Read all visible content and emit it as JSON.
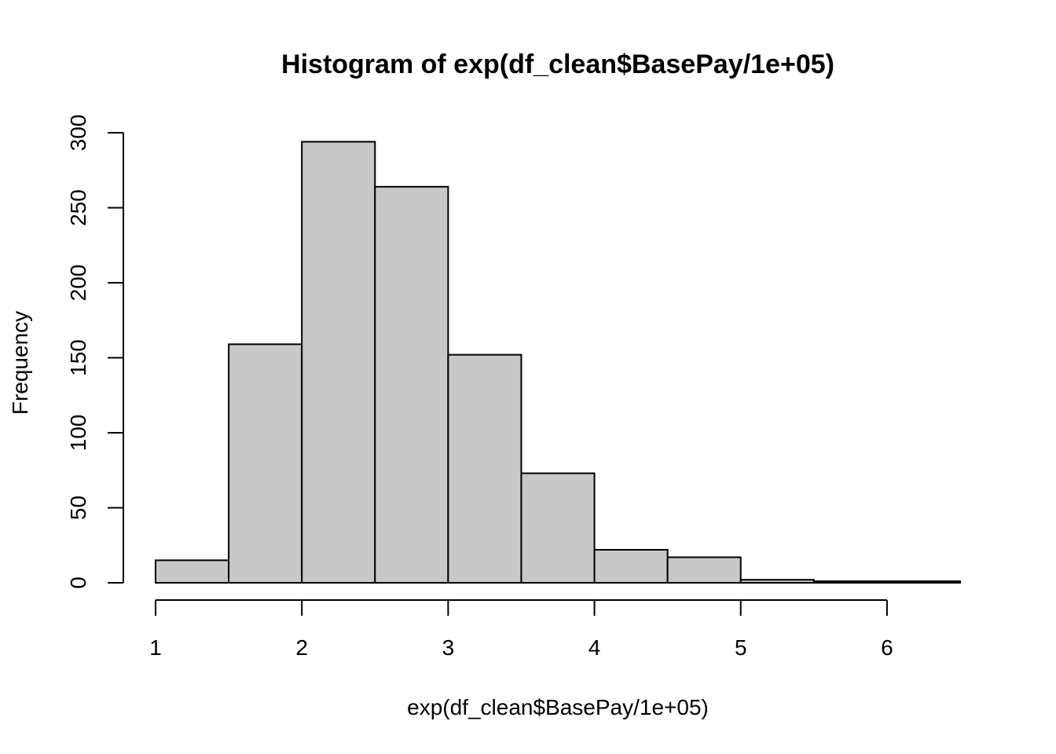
{
  "chart_data": {
    "type": "bar",
    "title": "Histogram of exp(df_clean$BasePay/1e+05)",
    "xlabel": "exp(df_clean$BasePay/1e+05)",
    "ylabel": "Frequency",
    "bins": [
      {
        "start": 1.0,
        "end": 1.5,
        "count": 15
      },
      {
        "start": 1.5,
        "end": 2.0,
        "count": 159
      },
      {
        "start": 2.0,
        "end": 2.5,
        "count": 294
      },
      {
        "start": 2.5,
        "end": 3.0,
        "count": 264
      },
      {
        "start": 3.0,
        "end": 3.5,
        "count": 152
      },
      {
        "start": 3.5,
        "end": 4.0,
        "count": 73
      },
      {
        "start": 4.0,
        "end": 4.5,
        "count": 22
      },
      {
        "start": 4.5,
        "end": 5.0,
        "count": 17
      },
      {
        "start": 5.0,
        "end": 5.5,
        "count": 2
      },
      {
        "start": 5.5,
        "end": 6.0,
        "count": 1
      },
      {
        "start": 6.0,
        "end": 6.5,
        "count": 1
      }
    ],
    "xlim": [
      1,
      6.5
    ],
    "ylim": [
      0,
      300
    ],
    "xticks": [
      "1",
      "2",
      "3",
      "4",
      "5",
      "6"
    ],
    "yticks": [
      "0",
      "50",
      "100",
      "150",
      "200",
      "250",
      "300"
    ],
    "colors": {
      "bar_fill": "#c8c8c8",
      "bar_stroke": "#000000"
    },
    "grid": false,
    "legend": "none"
  }
}
